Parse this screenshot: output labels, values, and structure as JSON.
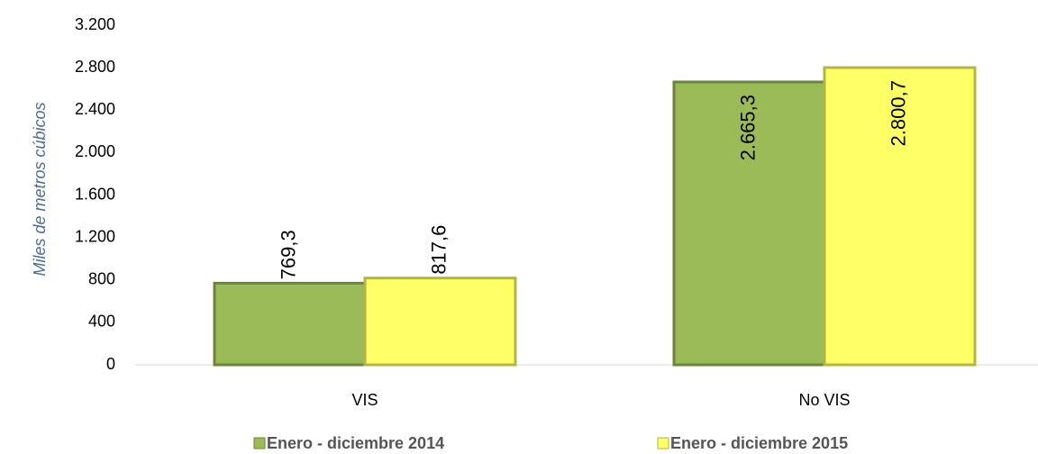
{
  "chart_data": {
    "type": "bar",
    "y_axis_label": "Miles de metros cúbicos",
    "categories": [
      "VIS",
      "No VIS"
    ],
    "series": [
      {
        "name": "Enero - diciembre 2014",
        "color": "#9bbb59",
        "values": [
          769.3,
          2665.3
        ],
        "value_labels": [
          "769,3",
          "2.665,3"
        ]
      },
      {
        "name": "Enero - diciembre 2015",
        "color": "#ffff66",
        "values": [
          817.6,
          2800.7
        ],
        "value_labels": [
          "817,6",
          "2.800,7"
        ]
      }
    ],
    "ylim": [
      0,
      3200
    ],
    "yticks": [
      0,
      400,
      800,
      {
        "value": 1200,
        "label": "1.200"
      },
      {
        "value": 1600,
        "label": "1.600"
      },
      {
        "value": 2000,
        "label": "2.000"
      },
      {
        "value": 2400,
        "label": "2.400"
      },
      {
        "value": 2800,
        "label": "2.800"
      },
      {
        "value": 3200,
        "label": "3.200"
      }
    ],
    "grid": false,
    "legend": "bottom"
  }
}
